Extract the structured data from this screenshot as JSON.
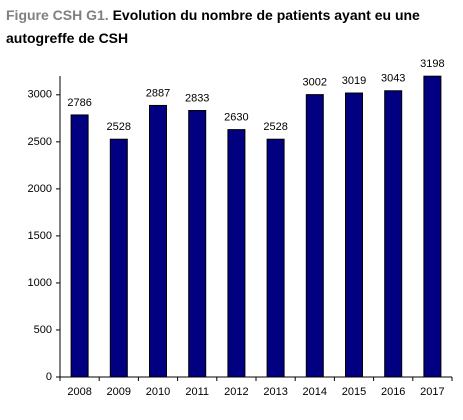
{
  "chart_data": {
    "type": "bar",
    "title_prefix": "Figure CSH G1.",
    "title": "Evolution du nombre de patients ayant eu une autogreffe de CSH",
    "categories": [
      "2008",
      "2009",
      "2010",
      "2011",
      "2012",
      "2013",
      "2014",
      "2015",
      "2016",
      "2017"
    ],
    "values": [
      2786,
      2528,
      2887,
      2833,
      2630,
      2528,
      3002,
      3019,
      3043,
      3198
    ],
    "color": "#000080",
    "ylim": [
      0,
      3200
    ],
    "yticks": [
      0,
      500,
      1000,
      1500,
      2000,
      2500,
      3000
    ]
  }
}
